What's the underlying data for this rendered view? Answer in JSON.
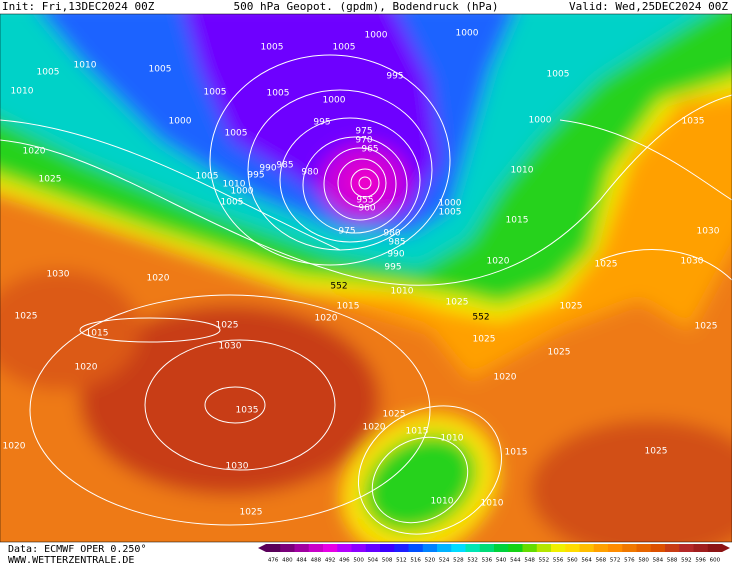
{
  "header": {
    "init": "Init: Fri,13DEC2024 00Z",
    "title": "500 hPa Geopot. (gpdm), Bodendruck (hPa)",
    "valid": "Valid: Wed,25DEC2024 00Z"
  },
  "footer": {
    "data": "Data: ECMWF OPER 0.250°",
    "site": "WWW.WETTERZENTRALE.DE"
  },
  "legend": {
    "values": [
      476,
      480,
      484,
      488,
      492,
      496,
      500,
      504,
      508,
      512,
      516,
      520,
      524,
      528,
      532,
      536,
      540,
      544,
      548,
      552,
      556,
      560,
      564,
      568,
      572,
      576,
      580,
      584,
      588,
      592,
      596,
      600
    ],
    "colors": [
      "#5a005a",
      "#7a007a",
      "#a000a0",
      "#c800c8",
      "#e600e6",
      "#b400ff",
      "#8c00ff",
      "#6400ff",
      "#3c00ff",
      "#1e1eff",
      "#0050ff",
      "#0082ff",
      "#00b4ff",
      "#00dcff",
      "#00e6b4",
      "#00dc78",
      "#00d23c",
      "#14d214",
      "#64dc00",
      "#b4e600",
      "#f0f000",
      "#ffdc00",
      "#ffbe00",
      "#ffa000",
      "#ff8c00",
      "#f07800",
      "#e66400",
      "#dc5000",
      "#c83c14",
      "#b42828",
      "#a01e1e",
      "#8c1414"
    ]
  },
  "isobar_labels": [
    "1005",
    "1005",
    "1000",
    "1000",
    "1010",
    "1005",
    "1005",
    "1005",
    "1005",
    "1000",
    "995",
    "1005",
    "1010",
    "1000",
    "1005",
    "995",
    "975",
    "970",
    "965",
    "985",
    "990",
    "995",
    "1000",
    "1010",
    "1005",
    "1005",
    "980",
    "955",
    "960",
    "1000",
    "1005",
    "1010",
    "1015",
    "1000",
    "1035",
    "1020",
    "1025",
    "975",
    "980",
    "985",
    "990",
    "995",
    "1030",
    "1030",
    "1025",
    "1020",
    "1010",
    "1015",
    "1020",
    "1025",
    "1025",
    "1025",
    "1025",
    "1025",
    "1020",
    "1030",
    "1020",
    "1025",
    "1015",
    "1025",
    "1030",
    "1020",
    "1035",
    "1030",
    "1025",
    "1020",
    "1025",
    "1020",
    "1015",
    "1010",
    "1015",
    "1025",
    "1010",
    "1010"
  ],
  "geopotential_labels": [
    "552",
    "552"
  ]
}
